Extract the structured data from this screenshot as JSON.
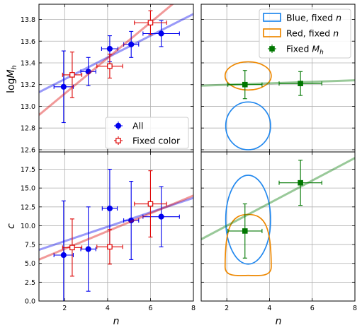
{
  "chart_data": [
    {
      "panel": "top-left",
      "type": "scatter",
      "ylabel": "logM_h",
      "xlim": [
        0.8,
        8
      ],
      "ylim": [
        12.58,
        13.94
      ],
      "xticks": [
        2,
        4,
        6,
        8
      ],
      "yticks": [
        12.6,
        12.8,
        13.0,
        13.2,
        13.4,
        13.6,
        13.8
      ],
      "ytick_labels": [
        "12.6",
        "12.8",
        "13.0",
        "13.2",
        "13.4",
        "13.6",
        "13.8"
      ],
      "grid": true,
      "legend": "lower-right",
      "series": [
        {
          "name": "All",
          "color": "#0000ee",
          "marker": "filled-circle",
          "points": [
            {
              "x": 1.95,
              "y": 13.18,
              "xerr": 0.45,
              "yerr": 0.33
            },
            {
              "x": 3.1,
              "y": 13.32,
              "xerr": 0.35,
              "yerr": 0.13
            },
            {
              "x": 4.1,
              "y": 13.53,
              "xerr": 0.38,
              "yerr": 0.12
            },
            {
              "x": 5.1,
              "y": 13.57,
              "xerr": 0.35,
              "yerr": 0.12
            },
            {
              "x": 6.5,
              "y": 13.67,
              "xerr": 0.85,
              "yerr": 0.12
            }
          ],
          "fit": {
            "x": [
              0.8,
              8
            ],
            "y": [
              13.13,
              13.85
            ]
          }
        },
        {
          "name": "Fixed color",
          "color": "#dd0000",
          "marker": "open-square",
          "points": [
            {
              "x": 2.35,
              "y": 13.29,
              "xerr": 0.45,
              "yerr": 0.21
            },
            {
              "x": 4.1,
              "y": 13.37,
              "xerr": 0.6,
              "yerr": 0.11
            },
            {
              "x": 6.0,
              "y": 13.77,
              "xerr": 0.75,
              "yerr": 0.11
            }
          ],
          "fit": {
            "x": [
              0.8,
              8
            ],
            "y": [
              12.92,
              14.1
            ]
          }
        }
      ]
    },
    {
      "panel": "top-right",
      "type": "scatter",
      "xlim": [
        0.8,
        8
      ],
      "ylim": [
        12.58,
        13.94
      ],
      "grid": true,
      "legend": "top-right",
      "series": [
        {
          "name": "Blue, fixed n",
          "color": "#2288ee",
          "kind": "contour",
          "ellipse": {
            "cx": 3.0,
            "cy": 12.82,
            "rx": 1.05,
            "ry": 0.22
          }
        },
        {
          "name": "Red, fixed n",
          "color": "#ee8800",
          "kind": "contour",
          "ellipse": {
            "cx": 3.0,
            "cy": 13.28,
            "rx": 1.08,
            "ry": 0.13
          }
        },
        {
          "name": "Fixed M_h",
          "color": "#007700",
          "marker": "filled-square",
          "points": [
            {
              "x": 2.85,
              "y": 13.2,
              "xerr": 0.8,
              "yerr": 0.13
            },
            {
              "x": 5.45,
              "y": 13.21,
              "xerr": 1.0,
              "yerr": 0.11
            }
          ],
          "fit": {
            "x": [
              0.8,
              8
            ],
            "y": [
              13.19,
              13.24
            ]
          }
        }
      ]
    },
    {
      "panel": "bottom-left",
      "type": "scatter",
      "xlabel": "n",
      "ylabel": "c",
      "xlim": [
        0.8,
        8
      ],
      "ylim": [
        0,
        19.8
      ],
      "xticks": [
        2,
        4,
        6,
        8
      ],
      "yticks": [
        0.0,
        2.5,
        5.0,
        7.5,
        10.0,
        12.5,
        15.0,
        17.5
      ],
      "ytick_labels": [
        "0.0",
        "2.5",
        "5.0",
        "7.5",
        "10.0",
        "12.5",
        "15.0",
        "17.5"
      ],
      "grid": true,
      "series": [
        {
          "name": "All",
          "color": "#0000ee",
          "marker": "filled-circle",
          "points": [
            {
              "x": 1.95,
              "y": 6.1,
              "xerr": 0.45,
              "yerr": 7.2
            },
            {
              "x": 3.1,
              "y": 6.9,
              "xerr": 0.35,
              "yerr": 5.6
            },
            {
              "x": 4.1,
              "y": 12.3,
              "xerr": 0.35,
              "yerr": 5.2
            },
            {
              "x": 5.1,
              "y": 10.7,
              "xerr": 0.35,
              "yerr": 5.2
            },
            {
              "x": 6.5,
              "y": 11.2,
              "xerr": 0.85,
              "yerr": 4.0
            }
          ],
          "fit": {
            "x": [
              0.8,
              8
            ],
            "y": [
              6.8,
              13.7
            ]
          }
        },
        {
          "name": "Fixed color",
          "color": "#dd0000",
          "marker": "open-square",
          "points": [
            {
              "x": 2.35,
              "y": 7.1,
              "xerr": 0.45,
              "yerr": 3.8
            },
            {
              "x": 4.1,
              "y": 7.2,
              "xerr": 0.6,
              "yerr": 2.3
            },
            {
              "x": 6.0,
              "y": 12.9,
              "xerr": 0.75,
              "yerr": 4.4
            }
          ],
          "fit": {
            "x": [
              0.8,
              8
            ],
            "y": [
              5.5,
              14.0
            ]
          }
        }
      ]
    },
    {
      "panel": "bottom-right",
      "type": "scatter",
      "xlabel": "n",
      "xlim": [
        0.8,
        8
      ],
      "ylim": [
        0,
        19.8
      ],
      "grid": true,
      "series": [
        {
          "name": "Blue, fixed n",
          "color": "#2288ee",
          "kind": "contour",
          "ellipse": {
            "cx": 3.0,
            "cy": 10.8,
            "rx": 1.05,
            "ry": 5.9
          }
        },
        {
          "name": "Red, fixed n",
          "color": "#ee8800",
          "kind": "contour",
          "teardrop": {
            "cx": 3.0,
            "top": 11.5,
            "bottom": 3.4,
            "halfwidth": 1.08
          }
        },
        {
          "name": "Fixed M_h",
          "color": "#007700",
          "marker": "filled-square",
          "points": [
            {
              "x": 2.85,
              "y": 9.3,
              "xerr": 0.8,
              "yerr": 3.6
            },
            {
              "x": 5.45,
              "y": 15.7,
              "xerr": 1.0,
              "yerr": 3.0
            }
          ],
          "fit": {
            "x": [
              0.8,
              8
            ],
            "y": [
              8.2,
              19.0
            ]
          }
        }
      ]
    }
  ],
  "legends": {
    "top_left": [
      {
        "label": "All",
        "color": "#0000ee",
        "marker": "filled-circle"
      },
      {
        "label": "Fixed color",
        "color": "#dd0000",
        "marker": "open-square"
      }
    ],
    "top_right": [
      {
        "label": "Blue, fixed n",
        "color": "#2288ee",
        "marker": "box"
      },
      {
        "label": "Red, fixed n",
        "color": "#ee8800",
        "marker": "box"
      },
      {
        "label": "Fixed M_h",
        "color": "#007700",
        "marker": "filled-square"
      }
    ]
  }
}
